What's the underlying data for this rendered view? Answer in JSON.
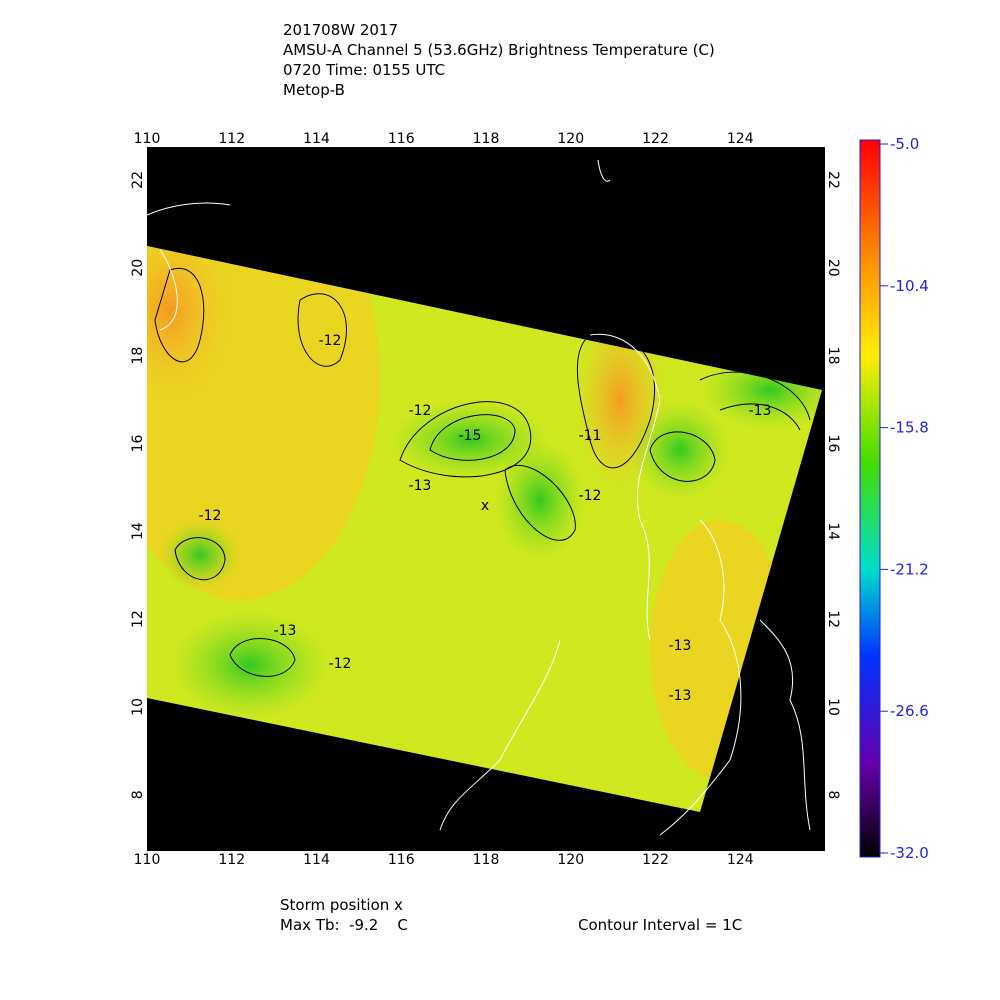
{
  "title_lines": [
    "201708W 2017",
    "AMSU-A Channel 5 (53.6GHz) Brightness Temperature (C)",
    "0720 Time: 0155 UTC",
    "Metop-B"
  ],
  "x_axis": {
    "lim": [
      110,
      126
    ],
    "ticks": [
      110,
      112,
      114,
      116,
      118,
      120,
      122,
      124
    ]
  },
  "y_axis": {
    "lim": [
      6.72,
      22.75
    ],
    "ticks": [
      8,
      10,
      12,
      14,
      16,
      18,
      20,
      22
    ]
  },
  "colorbar": {
    "lim": [
      -32,
      -5
    ],
    "ticks": [
      {
        "value": -5,
        "label": "-5.0"
      },
      {
        "value": -10.4,
        "label": "-10.4"
      },
      {
        "value": -15.8,
        "label": "-15.8"
      },
      {
        "value": -21.2,
        "label": "-21.2"
      },
      {
        "value": -26.6,
        "label": "-26.6"
      },
      {
        "value": -32,
        "label": "-32.0"
      }
    ]
  },
  "contour_labels": [
    "-12",
    "-12",
    "-12",
    "-12",
    "-13",
    "-13",
    "-13",
    "-15",
    "-11",
    "-12",
    "-13",
    "-13"
  ],
  "storm_marker": "x",
  "footer": {
    "storm_position": "Storm position x",
    "max_tb": "Max Tb:  -9.2    C",
    "contour_interval": "Contour Interval = 1C"
  }
}
